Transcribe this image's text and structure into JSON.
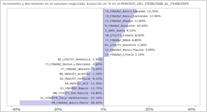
{
  "chart_data": {
    "type": "bar",
    "orientation": "horizontal",
    "title": "Incremento y decremento en el volumen negociado. Evolución en % en el PERIODO_DEL_29/08/2008_AL_29/08/2009",
    "categories": [
      "74_FINANZ_Banco Sabadell",
      "73_FINANZ_Banco Santander",
      "75_FINANZ_Mapfre",
      "9_FINANZ_Bankinter",
      "3_AIRE_Iberia",
      "78_UTILITY_Endesa",
      "72_FINANZ_BBVA",
      "61_UTILITY_Iberdrola",
      "11_FINANZ_Banco Popular",
      "12_FINANZ_Criteria",
      "81_UTILITY_Telefónica",
      "71_FINANZ_Bolsas y Mercados",
      "77_FINANZ_Banesto",
      "84_INDUST_Acerinox",
      "40_INDUST_Ferrovial",
      "39_INDUST_ACS",
      "55_ENERGY_Repsol",
      "88_UTILITY_Gas Natural",
      "21_CONSTR_Sacyr Vallehermoso",
      "49_FINANZ_Banco Pastor"
    ],
    "values": [
      14.2,
      12.9,
      11.6,
      10.4,
      9.1,
      8.0,
      6.8,
      5.3,
      3.9,
      2.1,
      -1.9,
      -3.6,
      -5.4,
      -7.2,
      -9.1,
      -11.3,
      -13.7,
      -16.8,
      -22.5,
      -36.3
    ],
    "value_labels": [
      "14,20%",
      "12,90%",
      "11,60%",
      "10,40%",
      "9,10%",
      "8,00%",
      "6,80%",
      "5,30%",
      "3,90%",
      "2,10%",
      "-1,90%",
      "-3,60%",
      "-5,40%",
      "-7,20%",
      "-9,10%",
      "-11,30%",
      "-13,70%",
      "-16,80%",
      "-22,50%",
      "-36,30%"
    ],
    "data_labels": true,
    "color": "#c9c9f2",
    "xlim": [
      -42,
      42
    ],
    "xticks": [
      {
        "value": -40,
        "label": "-40%"
      },
      {
        "value": -20,
        "label": "-20%"
      },
      {
        "value": 0,
        "label": "0%"
      },
      {
        "value": 20,
        "label": "20%"
      },
      {
        "value": 40,
        "label": "40%"
      }
    ],
    "grid": false
  }
}
